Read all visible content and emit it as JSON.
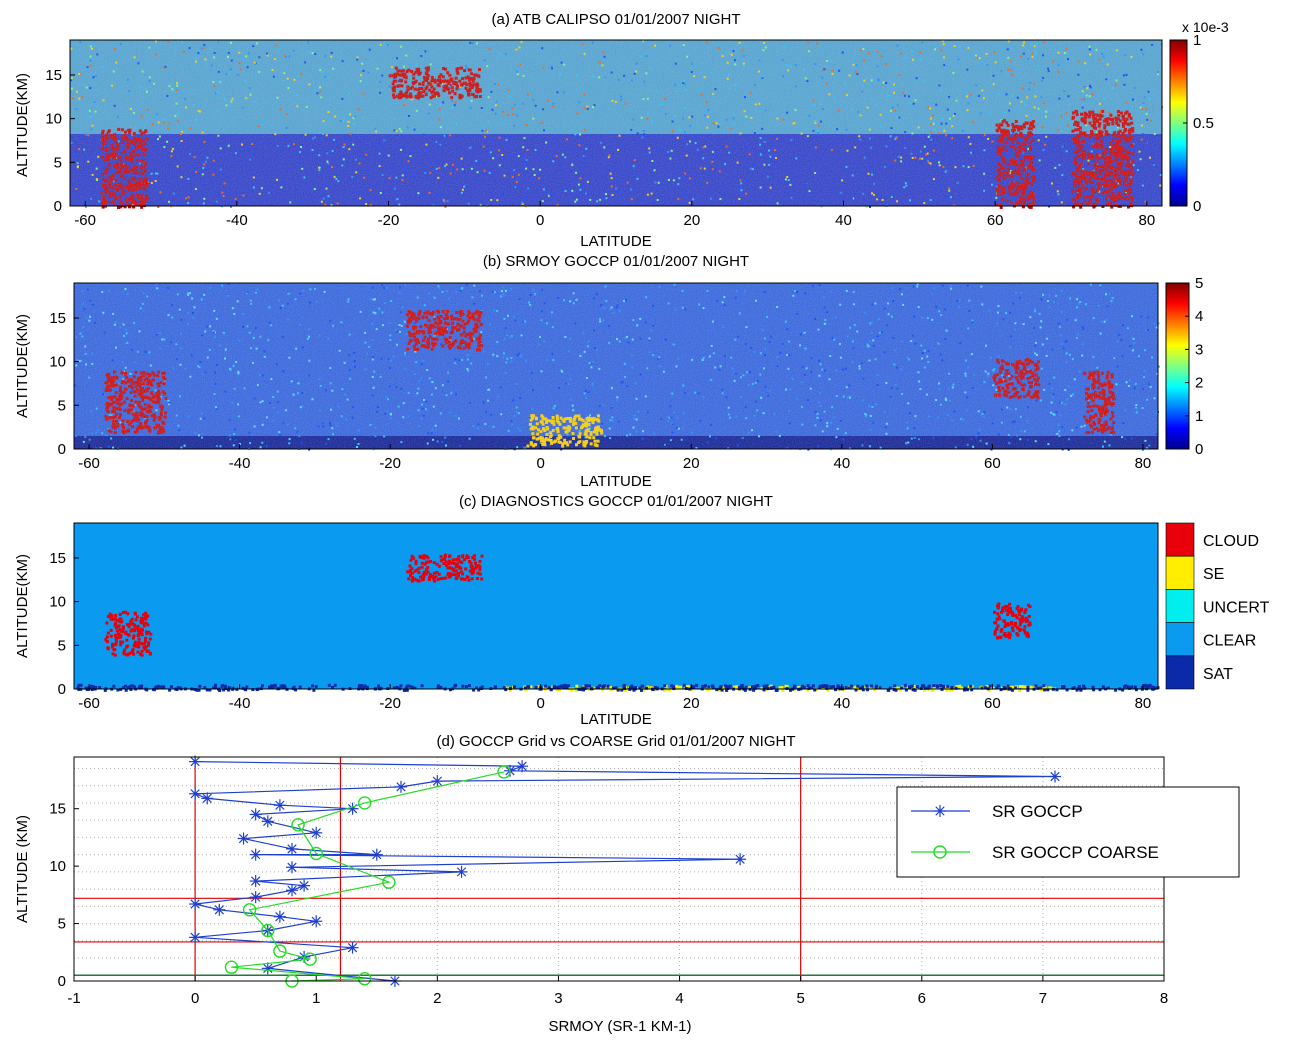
{
  "chart_data": [
    {
      "type": "heatmap",
      "title": "(a) ATB CALIPSO 01/01/2007 NIGHT",
      "xlabel": "LATITUDE",
      "ylabel": "ALTITUDE(KM)",
      "xlim": [
        -62,
        82
      ],
      "ylim": [
        0,
        19
      ],
      "xticks": [
        -60,
        -40,
        -20,
        0,
        20,
        40,
        60,
        80
      ],
      "yticks": [
        0,
        5,
        10,
        15
      ],
      "colorbar": {
        "label": "x 10e-3",
        "min": 0,
        "max": 1,
        "ticks": [
          "0",
          "0.5",
          "1"
        ]
      },
      "regions": [
        {
          "lat": [
            -20,
            -8
          ],
          "alt": [
            12.5,
            16
          ],
          "level": "high"
        },
        {
          "lat": [
            -58,
            -52
          ],
          "alt": [
            0,
            9
          ],
          "level": "high"
        },
        {
          "lat": [
            60,
            65
          ],
          "alt": [
            0,
            10
          ],
          "level": "high"
        },
        {
          "lat": [
            70,
            78
          ],
          "alt": [
            0,
            11
          ],
          "level": "high"
        },
        {
          "lat": [
            -62,
            82
          ],
          "alt": [
            8.2,
            19
          ],
          "level": "noise"
        },
        {
          "lat": [
            -62,
            82
          ],
          "alt": [
            0,
            8.2
          ],
          "level": "low"
        }
      ]
    },
    {
      "type": "heatmap",
      "title": "(b) SRMOY GOCCP 01/01/2007 NIGHT",
      "xlabel": "LATITUDE",
      "ylabel": "ALTITUDE(KM)",
      "xlim": [
        -62,
        82
      ],
      "ylim": [
        0,
        19
      ],
      "xticks": [
        -60,
        -40,
        -20,
        0,
        20,
        40,
        60,
        80
      ],
      "yticks": [
        0,
        5,
        10,
        15
      ],
      "colorbar": {
        "label": "",
        "min": 0,
        "max": 5,
        "ticks": [
          "0",
          "1",
          "2",
          "3",
          "4",
          "5"
        ]
      },
      "regions": [
        {
          "lat": [
            -18,
            -8
          ],
          "alt": [
            11.5,
            16
          ],
          "level": "high"
        },
        {
          "lat": [
            -58,
            -50
          ],
          "alt": [
            2,
            9
          ],
          "level": "high"
        },
        {
          "lat": [
            60,
            66
          ],
          "alt": [
            6,
            10.5
          ],
          "level": "high"
        },
        {
          "lat": [
            72,
            76
          ],
          "alt": [
            2,
            9
          ],
          "level": "high"
        },
        {
          "lat": [
            -2,
            8
          ],
          "alt": [
            0.5,
            4
          ],
          "level": "mid"
        }
      ]
    },
    {
      "type": "heatmap",
      "title": "(c) DIAGNOSTICS GOCCP 01/01/2007 NIGHT",
      "xlabel": "LATITUDE",
      "ylabel": "ALTITUDE(KM)",
      "xlim": [
        -62,
        82
      ],
      "ylim": [
        0,
        19
      ],
      "xticks": [
        -60,
        -40,
        -20,
        0,
        20,
        40,
        60,
        80
      ],
      "yticks": [
        0,
        5,
        10,
        15
      ],
      "legend": [
        {
          "label": "CLOUD",
          "color": "#e8000b"
        },
        {
          "label": "SE",
          "color": "#ffee00"
        },
        {
          "label": "UNCERT",
          "color": "#00eeee"
        },
        {
          "label": "CLEAR",
          "color": "#0a9af0"
        },
        {
          "label": "SAT",
          "color": "#0a2aaa"
        }
      ],
      "regions": [
        {
          "lat": [
            -58,
            -52
          ],
          "alt": [
            4,
            9
          ],
          "class": "CLOUD"
        },
        {
          "lat": [
            -18,
            -8
          ],
          "alt": [
            12.5,
            15.5
          ],
          "class": "CLOUD"
        },
        {
          "lat": [
            60,
            65
          ],
          "alt": [
            6,
            10
          ],
          "class": "CLOUD"
        },
        {
          "lat": [
            -5,
            68
          ],
          "alt": [
            0,
            0.5
          ],
          "class": "SE"
        },
        {
          "lat": [
            -62,
            82
          ],
          "alt": [
            0,
            0.6
          ],
          "class": "SAT"
        }
      ]
    },
    {
      "type": "line",
      "title": "(d) GOCCP Grid vs COARSE Grid 01/01/2007 NIGHT",
      "xlabel": "SRMOY (SR-1 KM-1)",
      "ylabel": "ALTITUDE (KM)",
      "xlim": [
        -1,
        8
      ],
      "ylim": [
        0,
        19.5
      ],
      "xticks": [
        -1,
        0,
        1,
        2,
        3,
        4,
        5,
        6,
        7,
        8
      ],
      "yticks": [
        0,
        5,
        10,
        15
      ],
      "vlines": [
        0,
        1.2,
        5
      ],
      "hlines": [
        3.4,
        7.2
      ],
      "series": [
        {
          "name": "SR GOCCP",
          "color": "#1f3fd0",
          "marker": "star",
          "points": [
            [
              1.65,
              0
            ],
            [
              0.6,
              1.1
            ],
            [
              0.9,
              2.1
            ],
            [
              1.3,
              2.9
            ],
            [
              0.0,
              3.8
            ],
            [
              0.6,
              4.4
            ],
            [
              1.0,
              5.2
            ],
            [
              0.7,
              5.6
            ],
            [
              0.2,
              6.2
            ],
            [
              0.0,
              6.7
            ],
            [
              0.5,
              7.3
            ],
            [
              0.8,
              7.9
            ],
            [
              0.9,
              8.3
            ],
            [
              0.5,
              8.7
            ],
            [
              2.2,
              9.5
            ],
            [
              0.8,
              9.9
            ],
            [
              4.5,
              10.6
            ],
            [
              0.5,
              11.0
            ],
            [
              1.5,
              11.0
            ],
            [
              0.8,
              11.5
            ],
            [
              0.4,
              12.4
            ],
            [
              1.0,
              12.9
            ],
            [
              0.6,
              13.9
            ],
            [
              0.5,
              14.5
            ],
            [
              1.3,
              15.0
            ],
            [
              0.7,
              15.3
            ],
            [
              0.1,
              15.9
            ],
            [
              0.0,
              16.3
            ],
            [
              1.7,
              16.9
            ],
            [
              2.0,
              17.4
            ],
            [
              7.1,
              17.8
            ],
            [
              2.6,
              18.3
            ],
            [
              2.7,
              18.7
            ],
            [
              0.0,
              19.1
            ]
          ]
        },
        {
          "name": "SR GOCCP COARSE",
          "color": "#22dd22",
          "marker": "circle",
          "points": [
            [
              0.8,
              0
            ],
            [
              1.4,
              0.2
            ],
            [
              0.3,
              1.2
            ],
            [
              0.95,
              1.9
            ],
            [
              0.7,
              2.6
            ],
            [
              0.6,
              4.4
            ],
            [
              0.45,
              6.2
            ],
            [
              1.6,
              8.6
            ],
            [
              1.0,
              11.1
            ],
            [
              0.85,
              13.6
            ],
            [
              1.4,
              15.5
            ],
            [
              2.55,
              18.2
            ]
          ]
        }
      ],
      "legend_position": "top-right"
    }
  ]
}
